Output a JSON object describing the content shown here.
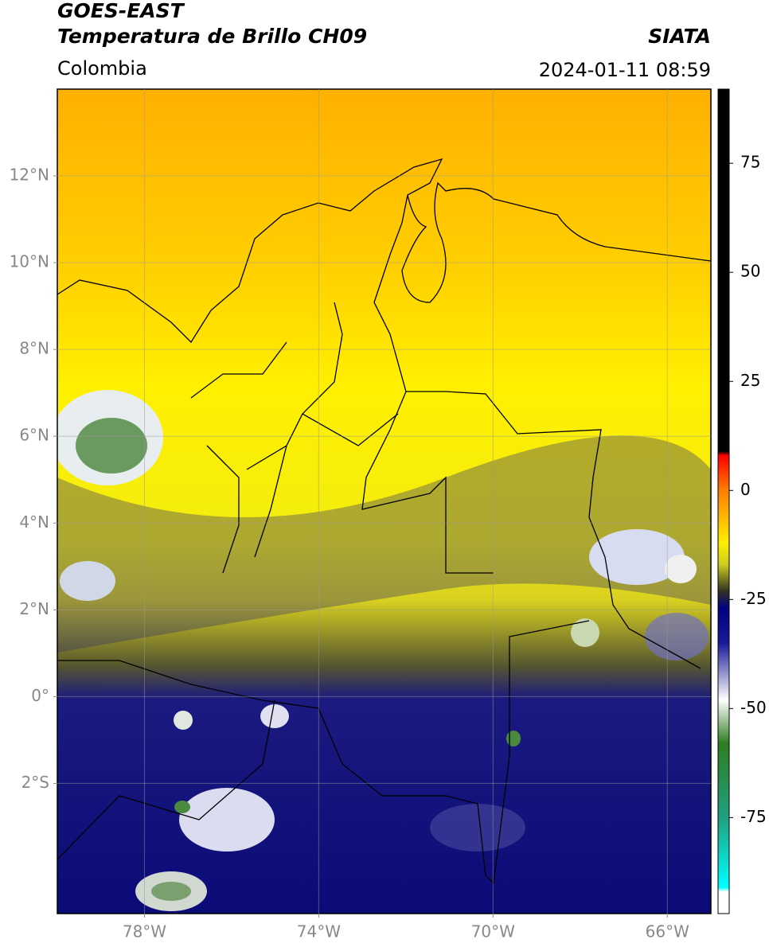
{
  "header": {
    "title": "GOES-EAST",
    "subtitle": "Temperatura de Brillo CH09",
    "source": "SIATA",
    "region": "Colombia",
    "datetime": "2024-01-11 08:59"
  },
  "map": {
    "lonlim": [
      -80,
      -65
    ],
    "latlim": [
      -5,
      14
    ],
    "grid": true,
    "lonticks": [
      {
        "value": -78,
        "label": "78°W"
      },
      {
        "value": -74,
        "label": "74°W"
      },
      {
        "value": -70,
        "label": "70°W"
      },
      {
        "value": -66,
        "label": "66°W"
      }
    ],
    "latticks": [
      {
        "value": 12,
        "label": "12°N"
      },
      {
        "value": 10,
        "label": "10°N"
      },
      {
        "value": 8,
        "label": "8°N"
      },
      {
        "value": 6,
        "label": "6°N"
      },
      {
        "value": 4,
        "label": "4°N"
      },
      {
        "value": 2,
        "label": "2°N"
      },
      {
        "value": 0,
        "label": "0°"
      },
      {
        "value": -2,
        "label": "2°S"
      }
    ]
  },
  "colorbar": {
    "lim": [
      -97,
      92
    ],
    "ticks": [
      75,
      50,
      25,
      0,
      -25,
      -50,
      -75
    ],
    "colormap": [
      {
        "value": 92,
        "color": "#000000"
      },
      {
        "value": 9,
        "color": "#000000"
      },
      {
        "value": 8,
        "color": "#ff0000"
      },
      {
        "value": 0,
        "color": "#ff7f00"
      },
      {
        "value": -12,
        "color": "#ffee00"
      },
      {
        "value": -17,
        "color": "#cccc22"
      },
      {
        "value": -23,
        "color": "#333322"
      },
      {
        "value": -27,
        "color": "#000080"
      },
      {
        "value": -35,
        "color": "#1a1a99"
      },
      {
        "value": -48,
        "color": "#ffffff"
      },
      {
        "value": -58,
        "color": "#2e7d20"
      },
      {
        "value": -75,
        "color": "#20a080"
      },
      {
        "value": -91,
        "color": "#00ffff"
      },
      {
        "value": -92,
        "color": "#ffffff"
      },
      {
        "value": -97,
        "color": "#ffffff"
      }
    ]
  }
}
